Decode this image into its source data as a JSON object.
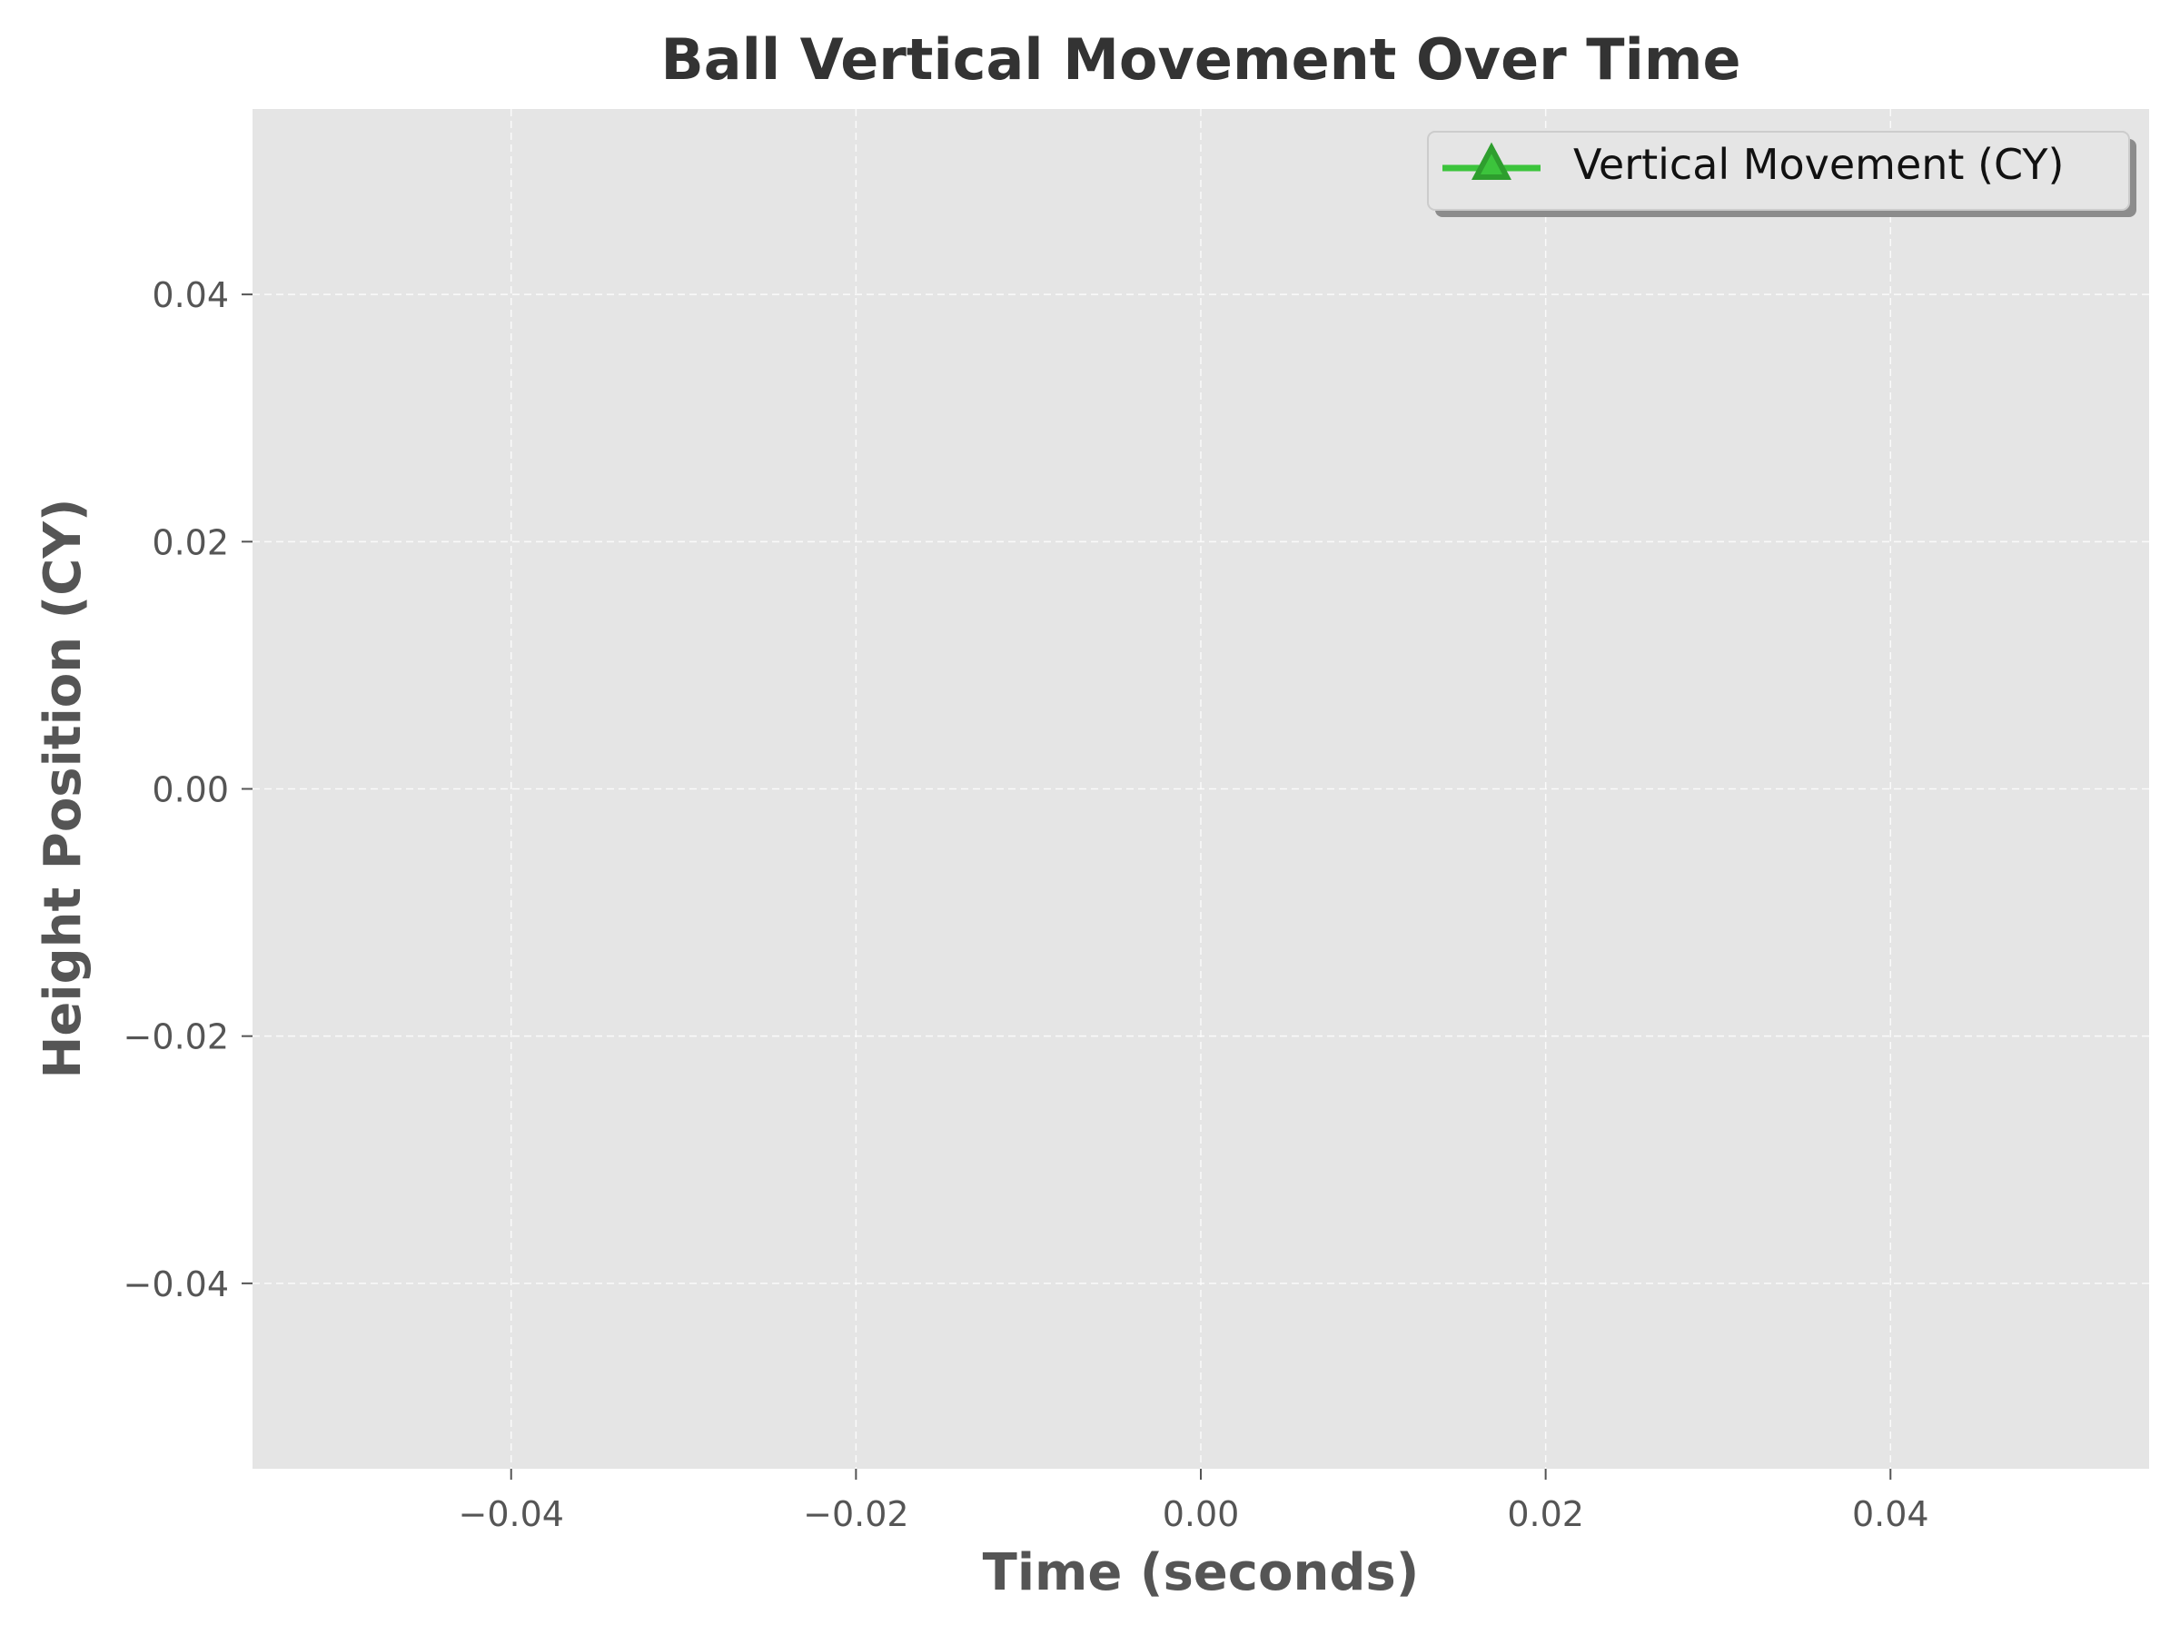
{
  "chart_data": {
    "type": "line",
    "title": "Ball Vertical Movement Over Time",
    "xlabel": "Time (seconds)",
    "ylabel": "Height Position (CY)",
    "xlim": [
      -0.055,
      0.055
    ],
    "ylim": [
      -0.055,
      0.055
    ],
    "x_ticks": [
      -0.04,
      -0.02,
      0.0,
      0.02,
      0.04
    ],
    "x_tick_labels": [
      "−0.04",
      "−0.02",
      "0.00",
      "0.02",
      "0.04"
    ],
    "y_ticks": [
      -0.04,
      -0.02,
      0.0,
      0.02,
      0.04
    ],
    "y_tick_labels": [
      "−0.04",
      "−0.02",
      "0.00",
      "0.02",
      "0.04"
    ],
    "grid": true,
    "legend_position": "top-right",
    "series": [
      {
        "name": "Vertical Movement (CY)",
        "color": "#3cc43c",
        "marker": "triangle",
        "marker_color": "#2e9e2e",
        "x": [],
        "y": []
      }
    ],
    "colors": {
      "plot_background": "#e5e5e5",
      "grid": "#ffffff",
      "title": "#333333",
      "axis_text": "#555555"
    }
  }
}
